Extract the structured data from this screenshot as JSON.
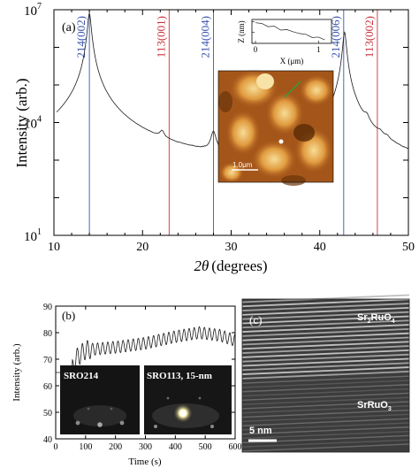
{
  "colors": {
    "axis": "#000000",
    "trace": "#1a1a1a",
    "blue_marker": "#3a55b0",
    "red_marker": "#c8323a",
    "panel_label": "#e06a1a",
    "afm_dark": "#5a2c06",
    "afm_mid": "#c06a1c",
    "afm_light": "#f2cc7a",
    "tem_bg": "#3a3a3a"
  },
  "chart_data": [
    {
      "panel": "(a)",
      "type": "line",
      "ylabel": "Intensity (arb.)",
      "xlabel": "2θ (degrees)",
      "xlabel_theta": "2θ",
      "xlabel_unit": "(degrees)",
      "xlim": [
        10,
        50
      ],
      "ylim_log10": [
        1,
        7
      ],
      "yscale": "log",
      "xticks": [
        "10",
        "20",
        "30",
        "40",
        "50"
      ],
      "yticks": [
        {
          "base": "10",
          "exp": "1"
        },
        {
          "base": "10",
          "exp": "4"
        },
        {
          "base": "10",
          "exp": "7"
        }
      ],
      "markers": [
        {
          "label": "214(002)",
          "x": 14.0,
          "color": "blue"
        },
        {
          "label": "113(001)",
          "x": 23.0,
          "color": "red"
        },
        {
          "label": "214(004)",
          "x": 28.0,
          "color": "blue"
        },
        {
          "label": "214(006)",
          "x": 42.7,
          "color": "blue"
        },
        {
          "label": "113(002)",
          "x": 46.5,
          "color": "red"
        }
      ],
      "peaks": [
        {
          "x": 14.0,
          "log10": 6.9
        },
        {
          "x": 22.2,
          "log10": 3.3
        },
        {
          "x": 28.0,
          "log10": 3.6
        },
        {
          "x": 42.8,
          "log10": 6.4
        },
        {
          "x": 45.3,
          "log10": 3.7
        }
      ],
      "baseline_log10": 2.3,
      "inset_afm": {
        "scalebar": "1.0μm",
        "profile": {
          "xlabel": "X (μm)",
          "ylabel": "Z (nm)",
          "xticks": [
            "0",
            "1"
          ],
          "yticks": [
            "0",
            "1",
            "2"
          ],
          "x": [
            0,
            0.1,
            0.2,
            0.3,
            0.4,
            0.5,
            0.6,
            0.7,
            0.8,
            0.9,
            1.0,
            1.1
          ],
          "z": [
            1.9,
            1.8,
            1.6,
            1.5,
            1.3,
            1.2,
            1.1,
            0.9,
            0.8,
            0.6,
            0.5,
            0.4
          ]
        }
      }
    },
    {
      "panel": "(b)",
      "type": "line",
      "ylabel": "Intensity (arb.)",
      "xlabel": "Time (s)",
      "xlim": [
        0,
        600
      ],
      "ylim": [
        40,
        90
      ],
      "xticks": [
        "0",
        "100",
        "200",
        "300",
        "400",
        "500",
        "600"
      ],
      "yticks": [
        "40",
        "50",
        "60",
        "70",
        "80",
        "90"
      ],
      "points": [
        [
          0,
          65
        ],
        [
          25,
          65
        ],
        [
          40,
          44
        ],
        [
          55,
          66
        ],
        [
          65,
          70
        ],
        [
          100,
          73.5
        ],
        [
          200,
          74.5
        ],
        [
          300,
          76
        ],
        [
          400,
          78.5
        ],
        [
          480,
          80
        ],
        [
          550,
          79
        ],
        [
          600,
          77
        ]
      ],
      "oscillation_amplitude": 2.5,
      "oscillation_period_s": 17,
      "insets": [
        {
          "label": "SRO214"
        },
        {
          "label": "SRO113, 15-nm"
        }
      ]
    },
    {
      "panel": "(c)",
      "type": "image",
      "labels": {
        "top_main": "Sr",
        "top_sub1": "2",
        "top_mid": "RuO",
        "top_sub2": "4",
        "bottom_main": "SrRuO",
        "bottom_sub": "3"
      },
      "scalebar": "5 nm"
    }
  ]
}
